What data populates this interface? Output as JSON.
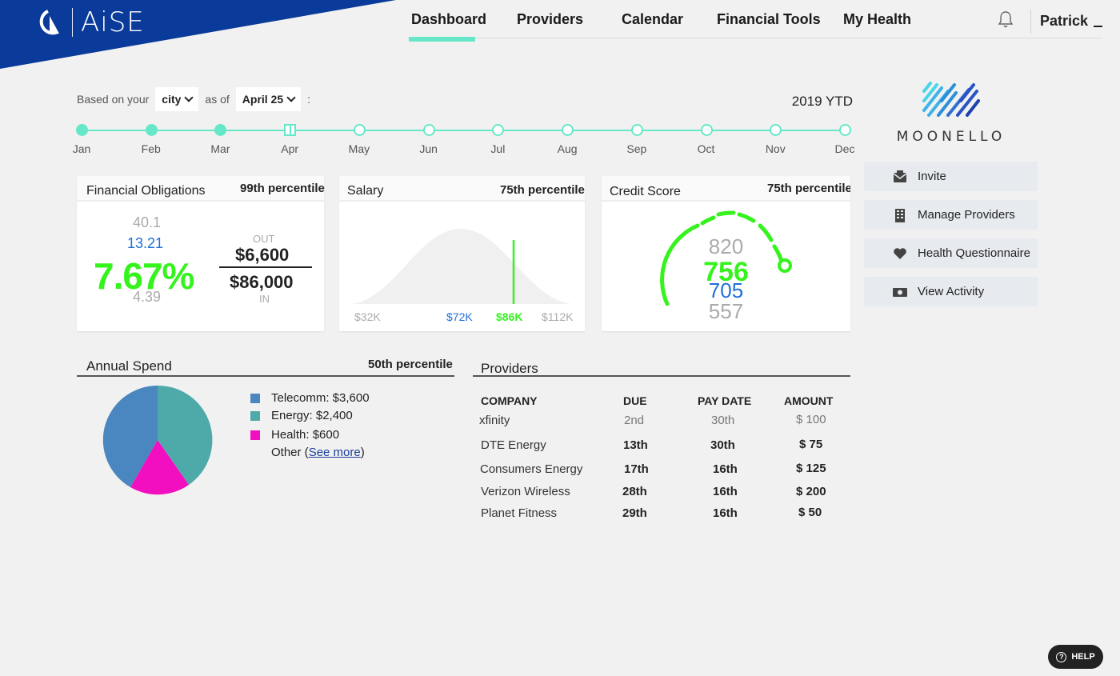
{
  "brand": {
    "logo_text": "AiSE",
    "color": "#0a3a9a"
  },
  "nav": {
    "items": [
      "Dashboard",
      "Providers",
      "Calendar",
      "Financial Tools",
      "My Health"
    ],
    "active": "Dashboard",
    "accent": "#66e8c8",
    "user": "Patrick",
    "notification_icon": "bell-icon"
  },
  "filter": {
    "prefix": "Based on your",
    "location_value": "city",
    "middle": "as of",
    "date_value": "April 25",
    "suffix": ":",
    "period": "2019 YTD"
  },
  "timeline": {
    "months": [
      "Jan",
      "Feb",
      "Mar",
      "Apr",
      "May",
      "Jun",
      "Jul",
      "Aug",
      "Sep",
      "Oct",
      "Nov",
      "Dec"
    ],
    "completed_through": 3,
    "current_index": 3
  },
  "financial_obligations": {
    "title": "Financial Obligations",
    "percentile": "99th percentile",
    "high": "40.1",
    "median": "13.21",
    "value": "7.67%",
    "low": "4.39",
    "out_label": "OUT",
    "out_value": "$6,600",
    "in_value": "$86,000",
    "in_label": "IN"
  },
  "salary": {
    "title": "Salary",
    "percentile": "75th percentile",
    "low": "$32K",
    "median": "$72K",
    "value": "$86K",
    "high": "$112K"
  },
  "credit_score": {
    "title": "Credit Score",
    "percentile": "75th percentile",
    "high": "820",
    "value": "756",
    "median": "705",
    "low": "557"
  },
  "sidebar": {
    "partner_name": "MOONELLO",
    "buttons": [
      {
        "label": "Invite",
        "icon": "envelope-icon"
      },
      {
        "label": "Manage Providers",
        "icon": "building-icon"
      },
      {
        "label": "Health Questionnaire",
        "icon": "heart-icon"
      },
      {
        "label": "View Activity",
        "icon": "cash-icon"
      }
    ]
  },
  "annual_spend": {
    "title": "Annual Spend",
    "percentile": "50th percentile",
    "legend": [
      {
        "label": "Telecomm: $3,600",
        "color": "#4a86c0"
      },
      {
        "label": "Energy: $2,400",
        "color": "#4daaa8"
      },
      {
        "label": "Health: $600",
        "color": "#f20fbf"
      }
    ],
    "other_prefix": "Other (",
    "other_link": "See more",
    "other_suffix": ")"
  },
  "providers": {
    "title": "Providers",
    "columns": [
      "COMPANY",
      "DUE",
      "PAY DATE",
      "AMOUNT"
    ],
    "rows": [
      [
        "xfinity",
        "2nd",
        "30th",
        "$ 100"
      ],
      [
        "DTE Energy",
        "13th",
        "30th",
        "$ 75"
      ],
      [
        "Consumers Energy",
        "17th",
        "16th",
        "$ 125"
      ],
      [
        "Verizon Wireless",
        "28th",
        "16th",
        "$ 200"
      ],
      [
        "Planet Fitness",
        "29th",
        "16th",
        "$ 50"
      ]
    ]
  },
  "help": {
    "label": "HELP"
  },
  "colors": {
    "highlight": "#35f31c",
    "blue": "#1f6fd6",
    "muted": "#aaaaaa"
  }
}
